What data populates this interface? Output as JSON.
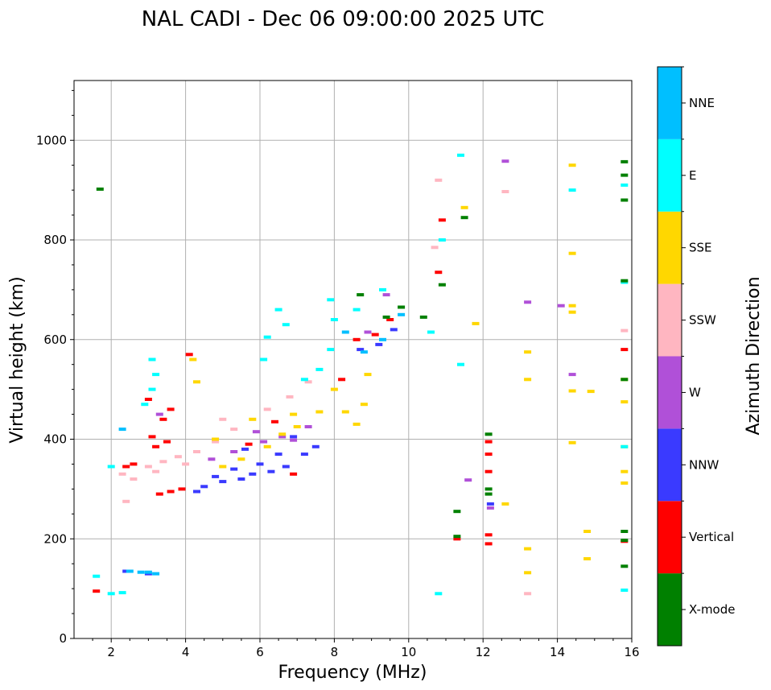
{
  "chart_data": {
    "type": "scatter",
    "title": "NAL CADI - Dec 06 09:00:00 2025 UTC",
    "xlabel": "Frequency (MHz)",
    "ylabel": "Virtual height (km)",
    "xlim": [
      1.0,
      16.0
    ],
    "ylim": [
      0,
      1120
    ],
    "xticks": [
      2,
      4,
      6,
      8,
      10,
      12,
      14,
      16
    ],
    "yticks": [
      0,
      200,
      400,
      600,
      800,
      1000
    ],
    "grid": true,
    "colorbar": {
      "label": "Azimuth Direction",
      "categories": [
        "X-mode",
        "Vertical",
        "NNW",
        "W",
        "SSW",
        "SSE",
        "E",
        "NNE"
      ],
      "colors": {
        "X-mode": "#008000",
        "Vertical": "#ff0000",
        "NNW": "#3a3aff",
        "W": "#b050d8",
        "SSW": "#ffb6c1",
        "SSE": "#ffd700",
        "E": "#00ffff",
        "NNE": "#00bfff"
      }
    },
    "series": [
      {
        "name": "Vertical",
        "points": [
          [
            1.6,
            95
          ],
          [
            3.3,
            290
          ],
          [
            3.6,
            295
          ],
          [
            3.9,
            300
          ],
          [
            3.2,
            385
          ],
          [
            3.5,
            395
          ],
          [
            3.1,
            405
          ],
          [
            3.4,
            440
          ],
          [
            3.0,
            480
          ],
          [
            3.6,
            460
          ],
          [
            2.4,
            345
          ],
          [
            2.6,
            350
          ],
          [
            5.7,
            390
          ],
          [
            6.4,
            435
          ],
          [
            6.9,
            330
          ],
          [
            8.2,
            520
          ],
          [
            8.6,
            600
          ],
          [
            9.1,
            610
          ],
          [
            9.5,
            640
          ],
          [
            10.8,
            735
          ],
          [
            10.9,
            840
          ],
          [
            11.3,
            200
          ],
          [
            12.15,
            190
          ],
          [
            12.15,
            208
          ],
          [
            12.15,
            335
          ],
          [
            12.15,
            370
          ],
          [
            12.15,
            395
          ],
          [
            15.8,
            580
          ],
          [
            15.8,
            195
          ],
          [
            4.1,
            570
          ]
        ]
      },
      {
        "name": "NNW",
        "points": [
          [
            4.5,
            305
          ],
          [
            5.0,
            315
          ],
          [
            5.5,
            320
          ],
          [
            5.8,
            330
          ],
          [
            6.3,
            335
          ],
          [
            6.7,
            345
          ],
          [
            7.2,
            370
          ],
          [
            7.5,
            385
          ],
          [
            4.8,
            325
          ],
          [
            5.3,
            340
          ],
          [
            6.0,
            350
          ],
          [
            4.3,
            295
          ],
          [
            5.6,
            380
          ],
          [
            6.9,
            405
          ],
          [
            8.7,
            580
          ],
          [
            9.2,
            590
          ],
          [
            9.6,
            620
          ],
          [
            12.2,
            270
          ],
          [
            2.4,
            135
          ],
          [
            3.0,
            130
          ],
          [
            6.5,
            370
          ]
        ]
      },
      {
        "name": "W",
        "points": [
          [
            4.7,
            360
          ],
          [
            5.3,
            375
          ],
          [
            6.1,
            395
          ],
          [
            6.6,
            405
          ],
          [
            7.3,
            425
          ],
          [
            5.9,
            415
          ],
          [
            6.9,
            398
          ],
          [
            8.9,
            615
          ],
          [
            9.4,
            690
          ],
          [
            12.2,
            262
          ],
          [
            12.6,
            958
          ],
          [
            13.2,
            675
          ],
          [
            14.1,
            668
          ],
          [
            14.4,
            530
          ],
          [
            11.6,
            318
          ],
          [
            3.3,
            450
          ]
        ]
      },
      {
        "name": "SSW",
        "points": [
          [
            2.4,
            275
          ],
          [
            2.3,
            330
          ],
          [
            3.0,
            345
          ],
          [
            3.4,
            355
          ],
          [
            3.8,
            365
          ],
          [
            4.3,
            375
          ],
          [
            4.8,
            395
          ],
          [
            5.3,
            420
          ],
          [
            6.2,
            460
          ],
          [
            6.8,
            485
          ],
          [
            7.3,
            515
          ],
          [
            3.2,
            335
          ],
          [
            4.0,
            350
          ],
          [
            2.6,
            320
          ],
          [
            10.8,
            920
          ],
          [
            10.7,
            785
          ],
          [
            12.6,
            897
          ],
          [
            13.2,
            90
          ],
          [
            15.8,
            618
          ],
          [
            5.0,
            440
          ]
        ]
      },
      {
        "name": "SSE",
        "points": [
          [
            5.0,
            345
          ],
          [
            5.5,
            360
          ],
          [
            6.2,
            385
          ],
          [
            6.6,
            410
          ],
          [
            7.0,
            425
          ],
          [
            7.6,
            455
          ],
          [
            8.0,
            500
          ],
          [
            8.3,
            455
          ],
          [
            8.6,
            430
          ],
          [
            8.8,
            470
          ],
          [
            8.9,
            530
          ],
          [
            5.8,
            440
          ],
          [
            6.9,
            450
          ],
          [
            4.8,
            400
          ],
          [
            4.3,
            515
          ],
          [
            4.2,
            560
          ],
          [
            11.8,
            632
          ],
          [
            13.2,
            575
          ],
          [
            13.2,
            520
          ],
          [
            13.2,
            180
          ],
          [
            13.2,
            132
          ],
          [
            14.4,
            950
          ],
          [
            14.4,
            773
          ],
          [
            14.4,
            668
          ],
          [
            14.4,
            655
          ],
          [
            14.4,
            497
          ],
          [
            14.9,
            496
          ],
          [
            14.4,
            393
          ],
          [
            14.8,
            215
          ],
          [
            14.8,
            160
          ],
          [
            15.8,
            520
          ],
          [
            15.8,
            475
          ],
          [
            15.8,
            385
          ],
          [
            15.8,
            335
          ],
          [
            15.8,
            312
          ],
          [
            12.6,
            270
          ],
          [
            11.5,
            865
          ]
        ]
      },
      {
        "name": "E",
        "points": [
          [
            1.6,
            125
          ],
          [
            2.0,
            90
          ],
          [
            2.3,
            92
          ],
          [
            2.9,
            470
          ],
          [
            3.1,
            500
          ],
          [
            3.2,
            530
          ],
          [
            3.1,
            560
          ],
          [
            6.1,
            560
          ],
          [
            6.2,
            605
          ],
          [
            6.5,
            660
          ],
          [
            6.7,
            630
          ],
          [
            7.2,
            520
          ],
          [
            7.6,
            540
          ],
          [
            7.9,
            580
          ],
          [
            8.0,
            640
          ],
          [
            7.9,
            680
          ],
          [
            8.6,
            660
          ],
          [
            9.3,
            700
          ],
          [
            10.6,
            615
          ],
          [
            10.9,
            800
          ],
          [
            11.4,
            970
          ],
          [
            11.4,
            550
          ],
          [
            10.8,
            90
          ],
          [
            14.4,
            900
          ],
          [
            15.8,
            910
          ],
          [
            15.8,
            97
          ],
          [
            15.8,
            715
          ],
          [
            15.8,
            385
          ],
          [
            2.0,
            345
          ]
        ]
      },
      {
        "name": "NNE",
        "points": [
          [
            2.5,
            135
          ],
          [
            2.8,
            133
          ],
          [
            3.2,
            130
          ],
          [
            3.0,
            133
          ],
          [
            8.8,
            575
          ],
          [
            9.3,
            600
          ],
          [
            9.8,
            650
          ],
          [
            2.3,
            420
          ],
          [
            8.3,
            615
          ]
        ]
      },
      {
        "name": "X-mode",
        "points": [
          [
            8.7,
            690
          ],
          [
            9.4,
            645
          ],
          [
            9.8,
            665
          ],
          [
            10.4,
            645
          ],
          [
            11.3,
            255
          ],
          [
            11.3,
            205
          ],
          [
            12.15,
            410
          ],
          [
            12.15,
            290
          ],
          [
            12.15,
            300
          ],
          [
            11.5,
            845
          ],
          [
            15.8,
            957
          ],
          [
            15.8,
            930
          ],
          [
            15.8,
            880
          ],
          [
            15.8,
            718
          ],
          [
            15.8,
            520
          ],
          [
            15.8,
            215
          ],
          [
            15.8,
            197
          ],
          [
            15.8,
            145
          ],
          [
            1.7,
            902
          ],
          [
            10.9,
            710
          ]
        ]
      }
    ]
  }
}
